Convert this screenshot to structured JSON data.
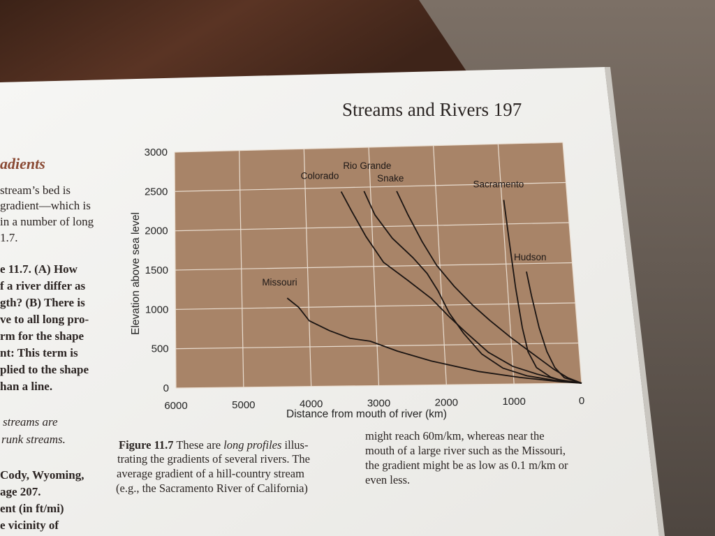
{
  "page": {
    "header": "Streams and Rivers 197",
    "left_column": [
      {
        "text": "adients",
        "style": "heading"
      },
      {
        "text": "stream’s bed is",
        "style": "regular"
      },
      {
        "text": "gradient—which is",
        "style": "regular"
      },
      {
        "text": "in a number of long",
        "style": "regular"
      },
      {
        "text": "1.7.",
        "style": "regular"
      },
      {
        "text": "e 11.7. (A) How",
        "style": "bold"
      },
      {
        "text": "f a river differ as",
        "style": "bold"
      },
      {
        "text": "gth? (B) There is",
        "style": "bold"
      },
      {
        "text": "ve to all long pro-",
        "style": "bold"
      },
      {
        "text": "rm for the shape",
        "style": "bold"
      },
      {
        "text": "nt: This term is",
        "style": "bold"
      },
      {
        "text": "plied to the shape",
        "style": "bold"
      },
      {
        "text": "han a line.",
        "style": "bold"
      },
      {
        "text": "streams are",
        "style": "italic"
      },
      {
        "text": "runk streams.",
        "style": "italic"
      },
      {
        "text": "Cody, Wyoming,",
        "style": "bold"
      },
      {
        "text": "age 207.",
        "style": "bold"
      },
      {
        "text": "ent (in ft/mi)",
        "style": "bold"
      },
      {
        "text": "e vicinity of",
        "style": "bold"
      }
    ],
    "caption_left": [
      "Figure 11.7 These are long profiles illus-",
      "trating the gradients of several rivers. The",
      "average gradient of a hill-country stream",
      "(e.g., the Sacramento River of California)"
    ],
    "caption_right": [
      "might reach 60m/km, whereas near the",
      "mouth of a large river such as the Missouri,",
      "the gradient might be as low as 0.1 m/km or",
      "even less."
    ]
  },
  "chart_data": {
    "type": "line",
    "title": "",
    "xlabel": "Distance from mouth of river (km)",
    "ylabel": "Elevation above sea level",
    "xlim": [
      6000,
      0
    ],
    "ylim": [
      0,
      3000
    ],
    "x_ticks": [
      "6000",
      "5000",
      "4000",
      "3000",
      "2000",
      "1000",
      "0"
    ],
    "y_ticks": [
      "0",
      "500",
      "1000",
      "1500",
      "2000",
      "2500",
      "3000"
    ],
    "grid": true,
    "plot_bg": "#a88468",
    "series": [
      {
        "name": "Missouri",
        "points": [
          [
            4320,
            1120
          ],
          [
            4150,
            1000
          ],
          [
            4000,
            830
          ],
          [
            3700,
            700
          ],
          [
            3400,
            600
          ],
          [
            3100,
            560
          ],
          [
            2700,
            430
          ],
          [
            2200,
            300
          ],
          [
            1500,
            160
          ],
          [
            900,
            80
          ],
          [
            300,
            20
          ],
          [
            0,
            0
          ]
        ]
      },
      {
        "name": "Colorado",
        "points": [
          [
            3450,
            2450
          ],
          [
            3300,
            2200
          ],
          [
            3100,
            1880
          ],
          [
            2850,
            1550
          ],
          [
            2500,
            1320
          ],
          [
            2150,
            1080
          ],
          [
            1900,
            850
          ],
          [
            1650,
            640
          ],
          [
            1350,
            400
          ],
          [
            1000,
            220
          ],
          [
            650,
            120
          ],
          [
            350,
            50
          ],
          [
            0,
            0
          ]
        ]
      },
      {
        "name": "Rio Grande",
        "points": [
          [
            3100,
            2450
          ],
          [
            2950,
            2150
          ],
          [
            2700,
            1850
          ],
          [
            2400,
            1600
          ],
          [
            2200,
            1400
          ],
          [
            2050,
            1180
          ],
          [
            1900,
            900
          ],
          [
            1700,
            640
          ],
          [
            1450,
            380
          ],
          [
            1150,
            200
          ],
          [
            800,
            100
          ],
          [
            400,
            40
          ],
          [
            0,
            0
          ]
        ]
      },
      {
        "name": "Snake",
        "points": [
          [
            2600,
            2440
          ],
          [
            2450,
            2150
          ],
          [
            2250,
            1800
          ],
          [
            2050,
            1500
          ],
          [
            1800,
            1230
          ],
          [
            1550,
            1000
          ],
          [
            1300,
            800
          ],
          [
            1000,
            580
          ],
          [
            700,
            380
          ],
          [
            400,
            180
          ],
          [
            200,
            70
          ],
          [
            0,
            0
          ]
        ]
      },
      {
        "name": "Sacramento",
        "points": [
          [
            970,
            2300
          ],
          [
            930,
            1800
          ],
          [
            880,
            1200
          ],
          [
            820,
            700
          ],
          [
            760,
            400
          ],
          [
            650,
            200
          ],
          [
            450,
            80
          ],
          [
            250,
            25
          ],
          [
            0,
            0
          ]
        ]
      },
      {
        "name": "Hudson",
        "points": [
          [
            700,
            1400
          ],
          [
            650,
            1100
          ],
          [
            570,
            700
          ],
          [
            480,
            400
          ],
          [
            380,
            200
          ],
          [
            250,
            70
          ],
          [
            0,
            0
          ]
        ]
      }
    ],
    "series_labels": [
      "Missouri",
      "Colorado",
      "Rio Grande",
      "Snake",
      "Sacramento",
      "Hudson"
    ]
  }
}
